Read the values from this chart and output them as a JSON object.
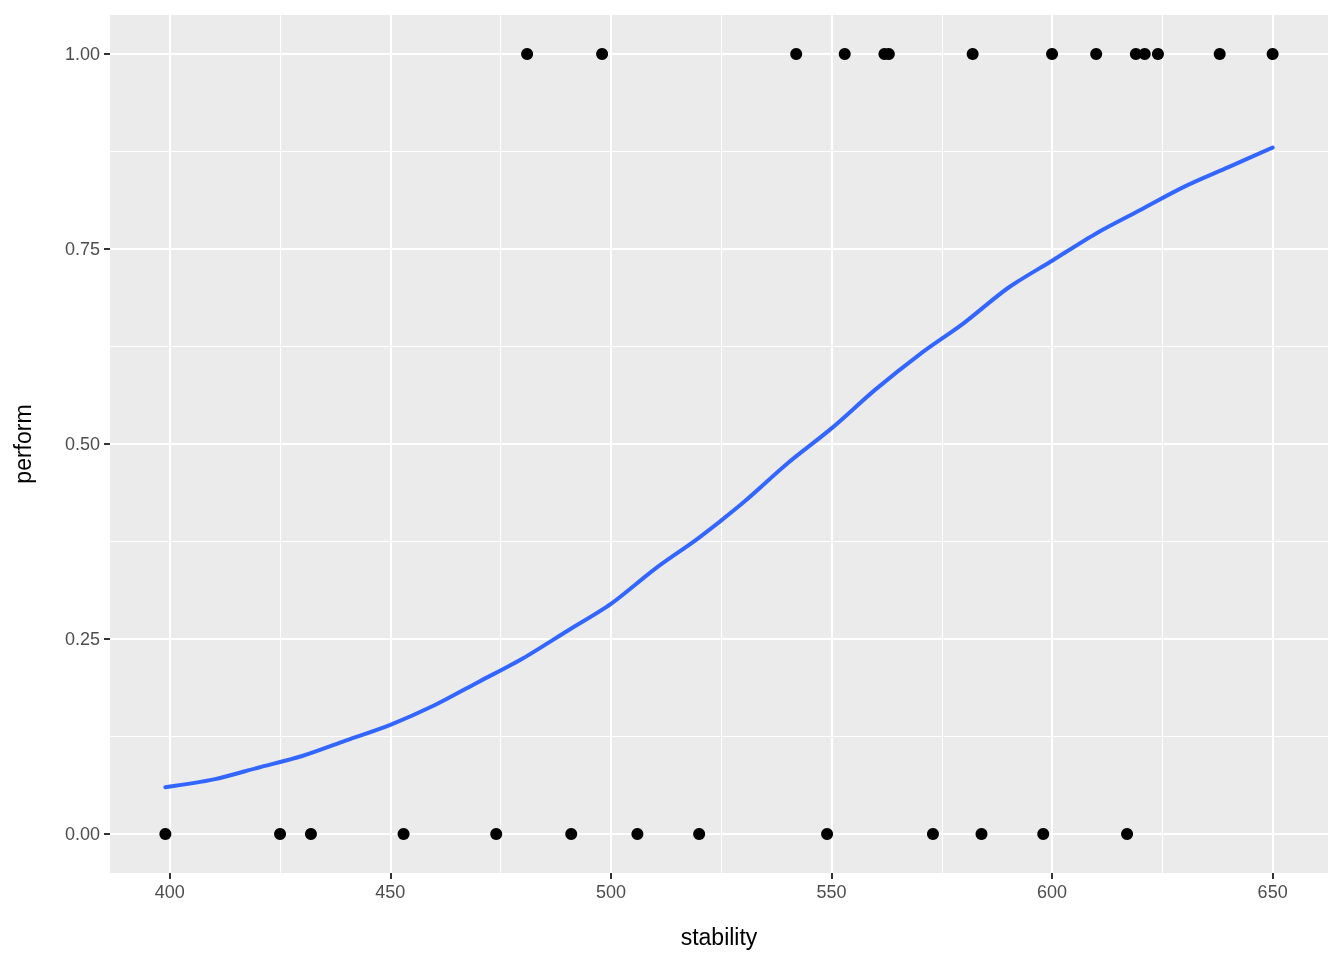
{
  "chart_data": {
    "type": "scatter",
    "xlabel": "stability",
    "ylabel": "perform",
    "xlim": [
      386.45,
      662.55
    ],
    "ylim": [
      -0.05,
      1.05
    ],
    "xticks": [
      400,
      450,
      500,
      550,
      600,
      650
    ],
    "yticks": [
      {
        "value": 0,
        "label": "0.00"
      },
      {
        "value": 0.25,
        "label": "0.25"
      },
      {
        "value": 0.5,
        "label": "0.50"
      },
      {
        "value": 0.75,
        "label": "0.75"
      },
      {
        "value": 1,
        "label": "1.00"
      }
    ],
    "grid": true,
    "series": [
      {
        "color": "#000000",
        "marker": "circle",
        "x": [
          399,
          425,
          432,
          453,
          474,
          481,
          491,
          498,
          506,
          520,
          542,
          549,
          553,
          562,
          563,
          573,
          582,
          584,
          598,
          600,
          610,
          617,
          619,
          621,
          624,
          638,
          650
        ],
        "values": [
          0,
          0,
          0,
          0,
          0,
          1,
          0,
          1,
          0,
          0,
          1,
          0,
          1,
          1,
          1,
          0,
          1,
          0,
          0,
          1,
          1,
          0,
          1,
          1,
          1,
          1,
          1
        ]
      },
      {
        "type": "line",
        "color": "#3366ff",
        "marker": "none",
        "line_style": "solid",
        "x": [
          399,
          410,
          420,
          430,
          440,
          450,
          460,
          470,
          480,
          490,
          500,
          510,
          520,
          530,
          540,
          550,
          560,
          570,
          580,
          590,
          600,
          610,
          620,
          630,
          640,
          650
        ],
        "values": [
          0.06,
          0.07,
          0.085,
          0.1,
          0.12,
          0.14,
          0.165,
          0.195,
          0.225,
          0.26,
          0.295,
          0.34,
          0.38,
          0.425,
          0.475,
          0.52,
          0.57,
          0.615,
          0.655,
          0.7,
          0.735,
          0.77,
          0.8,
          0.83,
          0.855,
          0.88
        ]
      }
    ]
  }
}
